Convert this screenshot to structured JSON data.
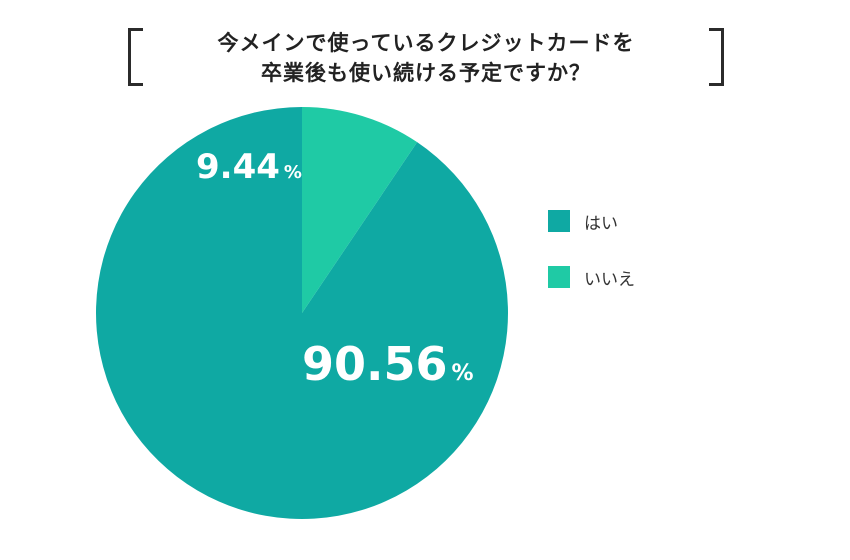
{
  "title": {
    "line1": "今メインで使っているクレジットカードを",
    "line2": "卒業後も使い続ける予定ですか？"
  },
  "chart_data": {
    "type": "pie",
    "title": "今メインで使っているクレジットカードを卒業後も使い続ける予定ですか？",
    "slices": [
      {
        "label": "はい",
        "value": 90.56,
        "value_text": "90.56",
        "unit": "%",
        "color": "#0fa9a3"
      },
      {
        "label": "いいえ",
        "value": 9.44,
        "value_text": "9.44",
        "unit": "%",
        "color": "#1fcaa5"
      }
    ],
    "start": "12 o'clock",
    "direction": "counter-clockwise",
    "legend_position": "right"
  }
}
